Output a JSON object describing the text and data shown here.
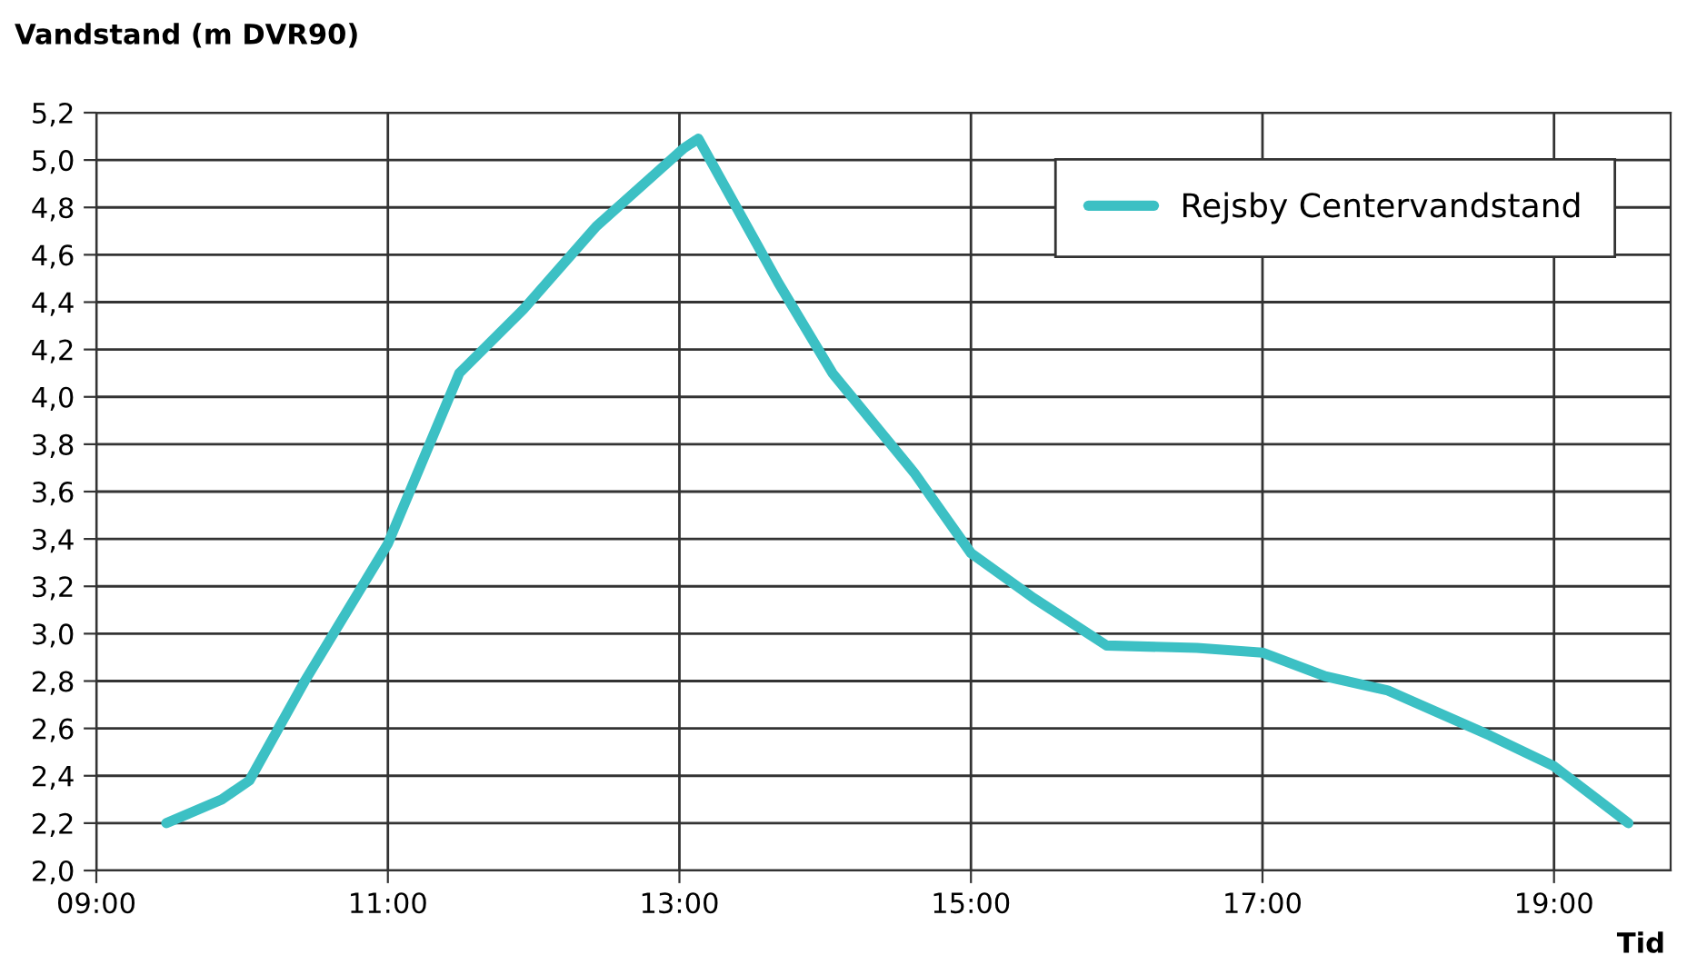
{
  "chart_data": {
    "type": "line",
    "ylabel": "Vandstand (m DVR90)",
    "xlabel": "Tid",
    "x": [
      9.48,
      9.86,
      10.05,
      10.43,
      11.0,
      11.49,
      11.93,
      12.43,
      13.03,
      13.13,
      13.68,
      14.05,
      14.61,
      15.0,
      15.43,
      15.93,
      16.55,
      17.0,
      17.43,
      17.86,
      18.56,
      19.0,
      19.51
    ],
    "series": [
      {
        "name": "Rejsby Centervandstand",
        "color": "#3cc0c4",
        "values": [
          2.2,
          2.3,
          2.38,
          2.8,
          3.38,
          4.1,
          4.37,
          4.72,
          5.05,
          5.09,
          4.48,
          4.1,
          3.68,
          3.34,
          3.15,
          2.95,
          2.94,
          2.92,
          2.82,
          2.76,
          2.57,
          2.44,
          2.2
        ]
      }
    ],
    "xlim": [
      9,
      19.8
    ],
    "xticks": [
      {
        "value": 9,
        "label": "09:00"
      },
      {
        "value": 11,
        "label": "11:00"
      },
      {
        "value": 13,
        "label": "13:00"
      },
      {
        "value": 15,
        "label": "15:00"
      },
      {
        "value": 17,
        "label": "17:00"
      },
      {
        "value": 19,
        "label": "19:00"
      }
    ],
    "ylim": [
      2.0,
      5.2
    ],
    "yticks": [
      {
        "value": 2.0,
        "label": "2,0"
      },
      {
        "value": 2.2,
        "label": "2,2"
      },
      {
        "value": 2.4,
        "label": "2,4"
      },
      {
        "value": 2.6,
        "label": "2,6"
      },
      {
        "value": 2.8,
        "label": "2,8"
      },
      {
        "value": 3.0,
        "label": "3,0"
      },
      {
        "value": 3.2,
        "label": "3,2"
      },
      {
        "value": 3.4,
        "label": "3,4"
      },
      {
        "value": 3.6,
        "label": "3,6"
      },
      {
        "value": 3.8,
        "label": "3,8"
      },
      {
        "value": 4.0,
        "label": "4,0"
      },
      {
        "value": 4.2,
        "label": "4,2"
      },
      {
        "value": 4.4,
        "label": "4,4"
      },
      {
        "value": 4.6,
        "label": "4,6"
      },
      {
        "value": 4.8,
        "label": "4,8"
      },
      {
        "value": 5.0,
        "label": "5,0"
      },
      {
        "value": 5.2,
        "label": "5,2"
      }
    ],
    "grid": true,
    "legend": "top right",
    "marker": "none",
    "line_style": "solid"
  }
}
